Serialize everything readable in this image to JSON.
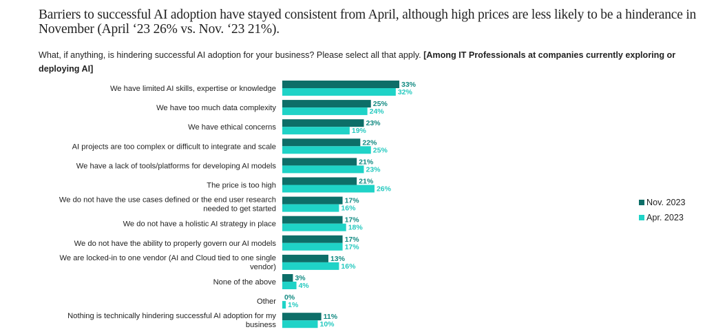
{
  "title": "Barriers to successful AI adoption have stayed consistent from April, although high prices are less likely to be a hinderance in November (April ‘23 26% vs. Nov. ‘23 21%).",
  "subtitle": {
    "question": "What, if anything, is hindering successful AI adoption for your business? Please select all that apply.",
    "base": "[Among IT Professionals at companies currently exploring or deploying AI]"
  },
  "colors": {
    "nov": "#0d6e68",
    "apr": "#1fd3c7",
    "nov_label": "#128a82",
    "apr_label": "#25c9bf"
  },
  "chart_data": {
    "type": "bar",
    "orientation": "horizontal",
    "title": "Barriers to successful AI adoption",
    "xlabel": "",
    "ylabel": "",
    "value_suffix": "%",
    "xlim": [
      0,
      35
    ],
    "grid": false,
    "legend_position": "right",
    "categories": [
      [
        "We have limited AI skills, expertise or knowledge"
      ],
      [
        "We have too much data complexity"
      ],
      [
        "We have ethical concerns"
      ],
      [
        "AI projects are too complex or difficult to integrate and scale"
      ],
      [
        "We have a lack of tools/platforms for developing AI models"
      ],
      [
        "The price is too high"
      ],
      [
        "We do not have the use cases defined or the end user research",
        "needed to get started"
      ],
      [
        "We do not have a holistic AI strategy in place"
      ],
      [
        "We do not have the ability to properly govern our AI models"
      ],
      [
        "We are locked-in to one vendor (AI and Cloud tied to one single",
        "vendor)"
      ],
      [
        "None of the above"
      ],
      [
        "Other"
      ],
      [
        "Nothing is technically hindering successful AI adoption for my",
        "business"
      ]
    ],
    "series": [
      {
        "name": "Nov. 2023",
        "values": [
          33,
          25,
          23,
          22,
          21,
          21,
          17,
          17,
          17,
          13,
          3,
          0,
          11
        ]
      },
      {
        "name": "Apr. 2023",
        "values": [
          32,
          24,
          19,
          25,
          23,
          26,
          16,
          18,
          17,
          16,
          4,
          1,
          10
        ]
      }
    ]
  }
}
